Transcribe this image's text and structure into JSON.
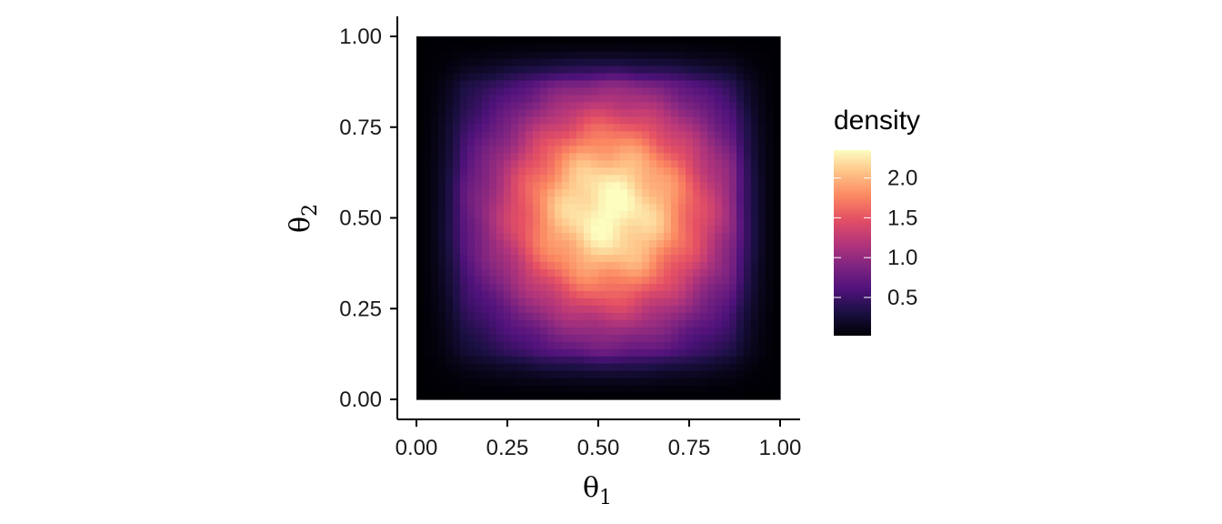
{
  "chart_data": {
    "type": "heatmap",
    "title": "",
    "xlabel": "θ",
    "xlabel_sub": "1",
    "ylabel": "θ",
    "ylabel_sub": "2",
    "xlim": [
      0,
      1
    ],
    "ylim": [
      0,
      1
    ],
    "x_ticks": [
      0,
      0.25,
      0.5,
      0.75,
      1
    ],
    "x_tick_labels": [
      "0.00",
      "0.25",
      "0.50",
      "0.75",
      "1.00"
    ],
    "y_ticks": [
      0,
      0.25,
      0.5,
      0.75,
      1
    ],
    "y_tick_labels": [
      "0.00",
      "0.25",
      "0.50",
      "0.75",
      "1.00"
    ],
    "grid": false,
    "colorscale": "magma",
    "colorbar": {
      "title": "density",
      "ticks": [
        0.5,
        1.0,
        1.5,
        2.0
      ],
      "tick_labels": [
        "0.5",
        "1.0",
        "1.5",
        "2.0"
      ],
      "range": [
        0.02,
        2.35
      ]
    },
    "legend_position": "right",
    "resolution": 50,
    "density_peak": {
      "x": 0.53,
      "y": 0.52,
      "value": 2.35
    },
    "density_edge_value": 0.02
  }
}
